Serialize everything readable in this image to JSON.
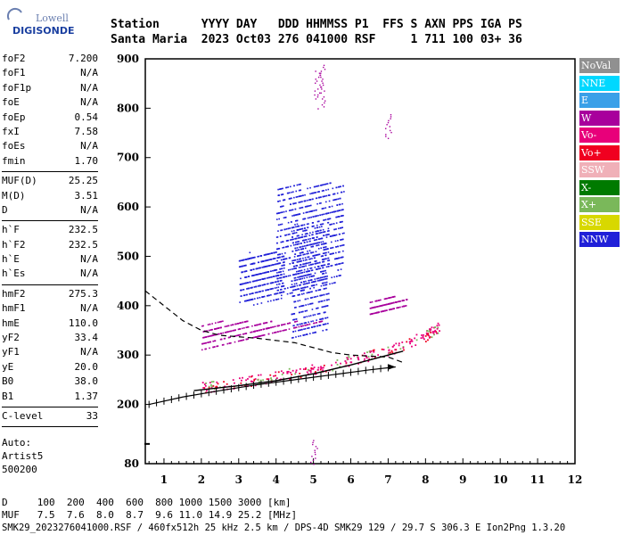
{
  "logo": {
    "top": "Lowell",
    "main": "DIGISONDE"
  },
  "header": {
    "labels": "Station      YYYY DAY   DDD HHMMSS P1  FFS S AXN PPS IGA PS",
    "values": "Santa Maria  2023 Oct03 276 041000 RSF     1 711 100 03+ 36"
  },
  "params_groups": [
    [
      [
        "foF2",
        "7.200"
      ],
      [
        "foF1",
        "N/A"
      ],
      [
        "foF1p",
        "N/A"
      ],
      [
        "foE",
        "N/A"
      ],
      [
        "foEp",
        "0.54"
      ],
      [
        "fxI",
        "7.58"
      ],
      [
        "foEs",
        "N/A"
      ],
      [
        "fmin",
        "1.70"
      ]
    ],
    [
      [
        "MUF(D)",
        "25.25"
      ],
      [
        "M(D)",
        "3.51"
      ],
      [
        "D",
        "N/A"
      ]
    ],
    [
      [
        "h`F",
        "232.5"
      ],
      [
        "h`F2",
        "232.5"
      ],
      [
        "h`E",
        "N/A"
      ],
      [
        "h`Es",
        "N/A"
      ]
    ],
    [
      [
        "hmF2",
        "275.3"
      ],
      [
        "hmF1",
        "N/A"
      ],
      [
        "hmE",
        "110.0"
      ],
      [
        "yF2",
        "33.4"
      ],
      [
        "yF1",
        "N/A"
      ],
      [
        "yE",
        "20.0"
      ],
      [
        "B0",
        "38.0"
      ],
      [
        "B1",
        "1.37"
      ]
    ],
    [
      [
        "C-level",
        "33"
      ]
    ]
  ],
  "auto": {
    "line1": "Auto:",
    "line2": "Artist5",
    "line3": "500200"
  },
  "legend": [
    {
      "label": "NoVal",
      "color": "#909090"
    },
    {
      "label": "NNE",
      "color": "#00d8ff"
    },
    {
      "label": "E",
      "color": "#3aa0e8"
    },
    {
      "label": "W",
      "color": "#a8009c"
    },
    {
      "label": "Vo-",
      "color": "#e8007a"
    },
    {
      "label": "Vo+",
      "color": "#f00020"
    },
    {
      "label": "SSW",
      "color": "#f0b0b8"
    },
    {
      "label": "X-",
      "color": "#007a00"
    },
    {
      "label": "X+",
      "color": "#7ab85a"
    },
    {
      "label": "SSE",
      "color": "#d8d800"
    },
    {
      "label": "NNW",
      "color": "#2020d8"
    }
  ],
  "footer": {
    "d_row": "D     100  200  400  600  800 1000 1500 3000 [km]",
    "muf_row": "MUF   7.5  7.6  8.0  8.7  9.6 11.0 14.9 25.2 [MHz]",
    "info": "SMK29_2023276041000.RSF / 460fx512h 25 kHz 2.5 km / DPS-4D SMK29 129 / 29.7 S 306.3 E Ion2Png 1.3.20"
  },
  "chart_data": {
    "type": "scatter",
    "xlim": [
      0.5,
      12
    ],
    "ylim": [
      80,
      900
    ],
    "x_ticks": [
      "1",
      "2",
      "3",
      "4",
      "5",
      "6",
      "7",
      "8",
      "9",
      "10",
      "11",
      "12"
    ],
    "y_ticks": [
      "80",
      "200",
      "300",
      "400",
      "500",
      "600",
      "700",
      "800",
      "900"
    ],
    "x_tick_values": [
      1,
      2,
      3,
      4,
      5,
      6,
      7,
      8,
      9,
      10,
      11,
      12
    ],
    "y_tick_values": [
      80,
      200,
      300,
      400,
      500,
      600,
      700,
      800,
      900
    ],
    "nnw_echo_clouds": [
      {
        "fmin": 4.0,
        "fmax": 5.8,
        "hmin": 420,
        "hmax": 640
      },
      {
        "fmin": 4.4,
        "fmax": 5.4,
        "hmin": 330,
        "hmax": 560
      },
      {
        "fmin": 3.0,
        "fmax": 4.2,
        "hmin": 400,
        "hmax": 500
      }
    ],
    "w_echo_clouds": [
      {
        "fmin": 2.0,
        "fmax": 6.0,
        "hmin": 310,
        "hmax": 360
      },
      {
        "fmin": 6.5,
        "fmax": 7.5,
        "hmin": 380,
        "hmax": 410
      }
    ],
    "red_trace": [
      [
        2.0,
        235
      ],
      [
        3.0,
        245
      ],
      [
        4.0,
        258
      ],
      [
        5.0,
        272
      ],
      [
        6.0,
        290
      ],
      [
        7.0,
        310
      ],
      [
        8.0,
        340
      ],
      [
        8.4,
        360
      ]
    ],
    "x_trace_fit": [
      [
        1.8,
        228
      ],
      [
        3,
        238
      ],
      [
        4,
        248
      ],
      [
        5,
        262
      ],
      [
        6,
        280
      ],
      [
        7,
        300
      ],
      [
        7.4,
        308
      ]
    ],
    "virtual_height_profile": [
      [
        0.6,
        200
      ],
      [
        1.5,
        215
      ],
      [
        2.5,
        228
      ],
      [
        3.5,
        240
      ],
      [
        4.5,
        250
      ],
      [
        5.5,
        260
      ],
      [
        6.5,
        270
      ],
      [
        7.2,
        276
      ]
    ],
    "dashed_profile": [
      [
        0.5,
        430
      ],
      [
        1.0,
        400
      ],
      [
        1.5,
        370
      ],
      [
        2.0,
        350
      ],
      [
        2.5,
        340
      ],
      [
        3.0,
        337
      ],
      [
        3.5,
        334
      ],
      [
        4.5,
        325
      ],
      [
        5.0,
        315
      ],
      [
        5.5,
        305
      ],
      [
        6.0,
        300
      ],
      [
        6.5,
        298
      ],
      [
        7.0,
        296
      ],
      [
        7.4,
        285
      ]
    ],
    "foF2": 7.2,
    "hmF2": 275.3
  }
}
